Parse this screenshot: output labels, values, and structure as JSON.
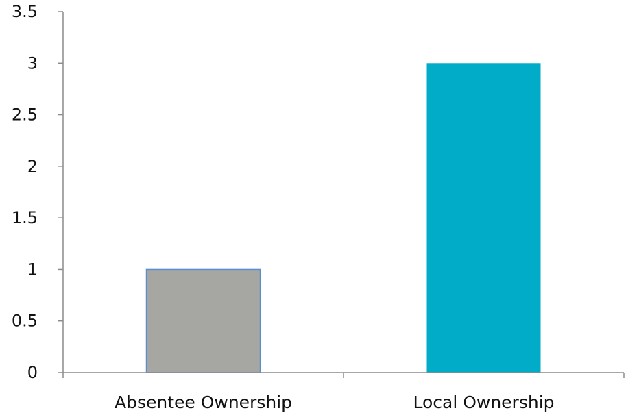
{
  "chart_data": {
    "type": "bar",
    "categories": [
      "Absentee Ownership",
      "Local Ownership"
    ],
    "values": [
      1,
      3
    ],
    "ylim": [
      0,
      3.5
    ],
    "yticks": [
      0,
      0.5,
      1,
      1.5,
      2,
      2.5,
      3,
      3.5
    ],
    "ytick_labels": [
      "0",
      "0.5",
      "1",
      "1.5",
      "2",
      "2.5",
      "3",
      "3.5"
    ],
    "bar_colors": [
      "#a6a6a2",
      "#00acc7"
    ],
    "bar_edge_color": "#5b8fd0",
    "grid": false,
    "legend": "none"
  }
}
